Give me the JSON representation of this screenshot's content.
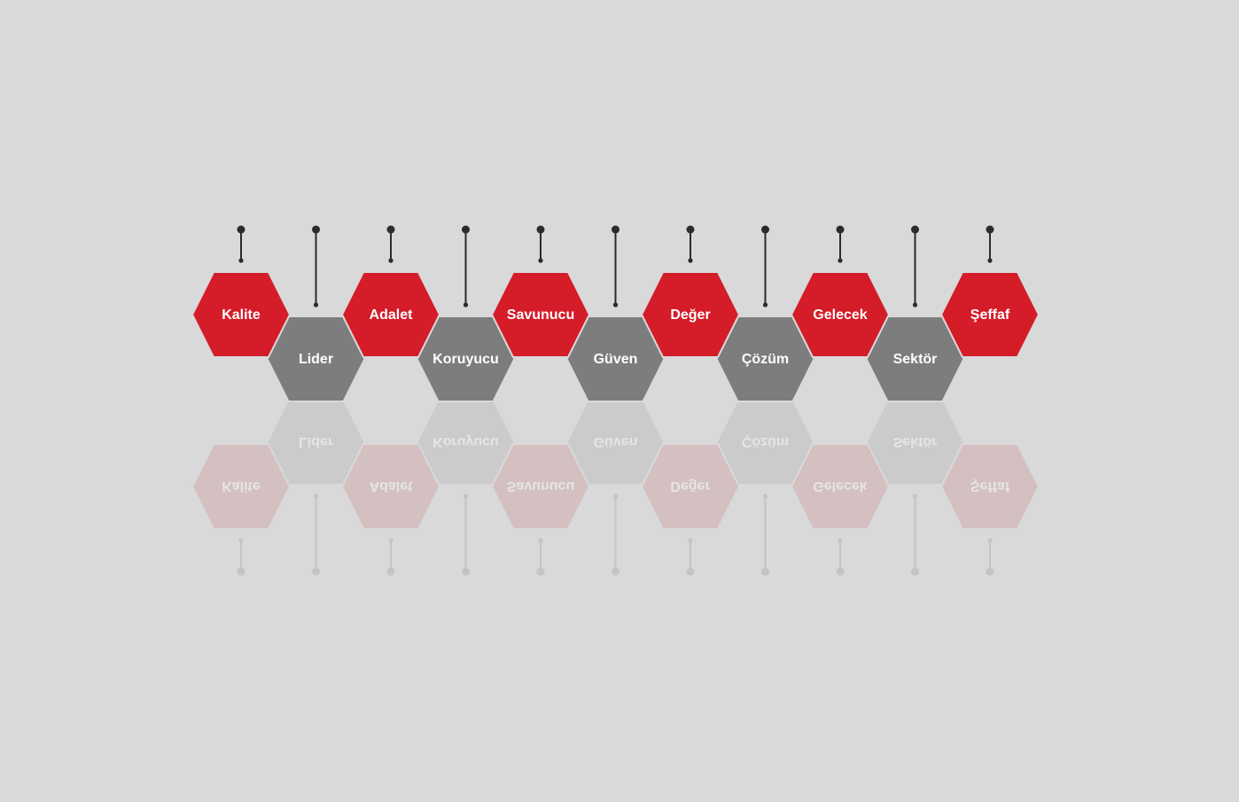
{
  "diagram": {
    "colors": {
      "background": "#d9d9d9",
      "accent_red": "#d51c29",
      "gray": "#7d7d7d",
      "connector": "#2b2b2b",
      "label": "#ffffff",
      "reflection_red": "#d4bfc1",
      "reflection_gray": "#cbcbcb",
      "reflection_label": "#e5e5e5",
      "reflection_connector": "#c4c4c4"
    },
    "items": [
      {
        "label": "Kalite",
        "color": "red"
      },
      {
        "label": "Lider",
        "color": "gray"
      },
      {
        "label": "Adalet",
        "color": "red"
      },
      {
        "label": "Koruyucu",
        "color": "gray"
      },
      {
        "label": "Savunucu",
        "color": "red"
      },
      {
        "label": "Güven",
        "color": "gray"
      },
      {
        "label": "Değer",
        "color": "red"
      },
      {
        "label": "Çözüm",
        "color": "gray"
      },
      {
        "label": "Gelecek",
        "color": "red"
      },
      {
        "label": "Sektör",
        "color": "gray"
      },
      {
        "label": "Şeffaf",
        "color": "red"
      }
    ]
  }
}
